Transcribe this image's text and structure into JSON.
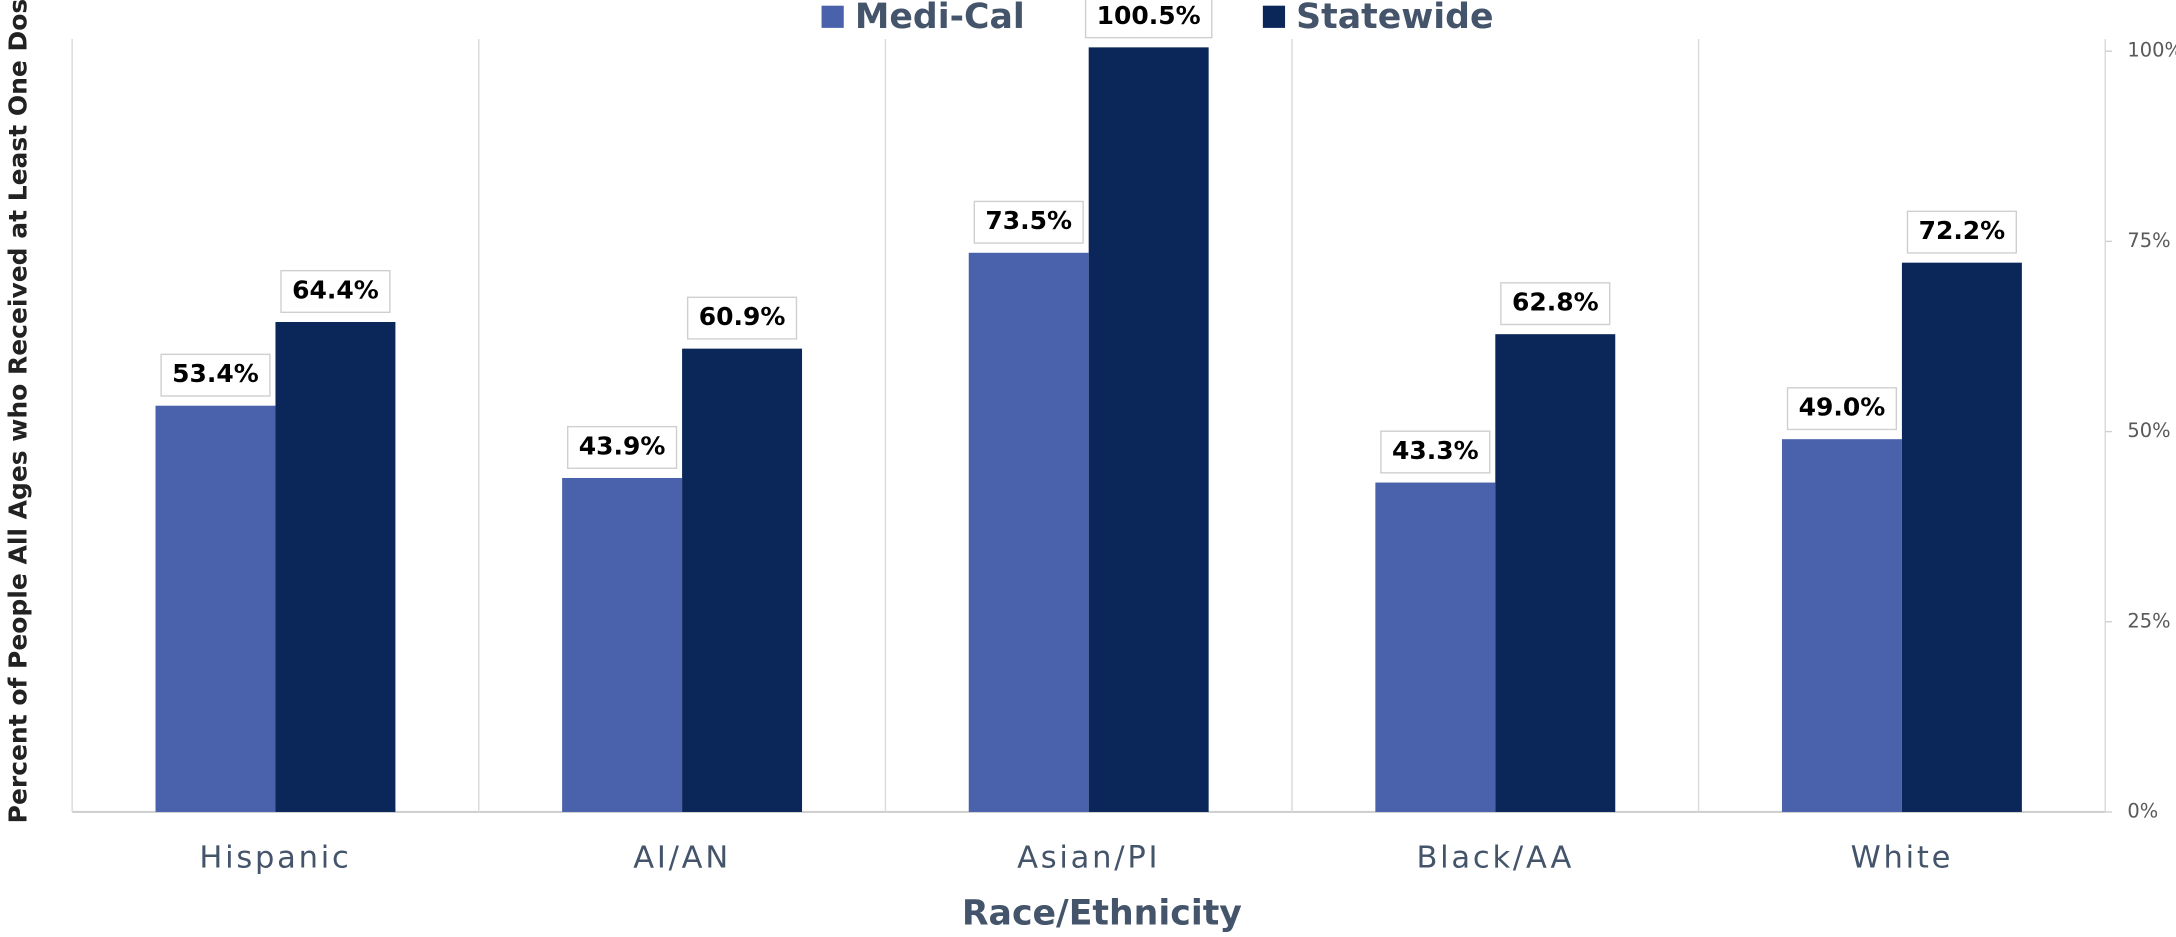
{
  "chart_data": {
    "type": "bar",
    "x_label": "Race/Ethnicity",
    "y_label": "Percent of People All Ages who Received at Least One Dose",
    "categories": [
      "Hispanic",
      "AI/AN",
      "Asian/PI",
      "Black/AA",
      "White"
    ],
    "series": [
      {
        "name": "Medi-Cal",
        "color": "#4a62ab",
        "values": [
          53.4,
          43.9,
          73.5,
          43.3,
          49.0
        ],
        "value_labels": [
          "53.4%",
          "43.9%",
          "73.5%",
          "43.3%",
          "49.0%"
        ]
      },
      {
        "name": "Statewide",
        "color": "#0b2759",
        "values": [
          64.4,
          60.9,
          100.5,
          62.8,
          72.2
        ],
        "value_labels": [
          "64.4%",
          "60.9%",
          "100.5%",
          "62.8%",
          "72.2%"
        ]
      }
    ],
    "ylim": [
      0,
      101.6
    ],
    "yticks": [
      {
        "value": 0,
        "label": "0%"
      },
      {
        "value": 25,
        "label": "25%"
      },
      {
        "value": 50,
        "label": "50%"
      },
      {
        "value": 75,
        "label": "75%"
      },
      {
        "value": 100,
        "label": "100%"
      }
    ],
    "legend": "top",
    "grid": false
  }
}
